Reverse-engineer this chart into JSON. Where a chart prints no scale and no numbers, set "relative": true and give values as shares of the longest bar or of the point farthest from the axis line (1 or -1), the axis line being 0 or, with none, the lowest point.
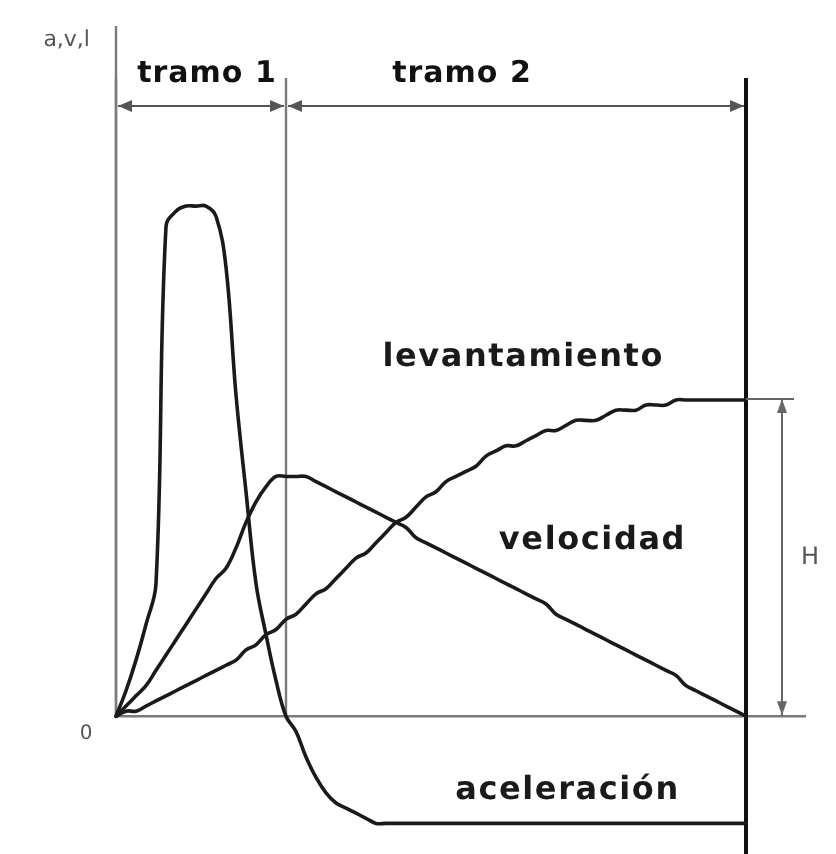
{
  "chart_data": {
    "type": "line",
    "relative": true,
    "tick_labels": false,
    "grid": false,
    "legend": false,
    "marker": "none",
    "line_style": "solid",
    "categories": [
      null,
      null,
      null,
      null,
      null,
      null,
      null,
      null,
      null,
      null,
      null,
      null,
      null,
      null,
      null,
      null,
      null,
      null,
      null,
      null,
      null,
      null,
      null,
      null,
      null,
      null,
      null,
      null,
      null,
      null,
      null,
      null,
      null,
      null,
      null,
      null,
      null,
      null,
      null,
      null,
      null,
      null,
      null,
      null,
      null,
      null,
      null,
      null,
      null,
      null,
      null,
      null,
      null,
      null,
      null,
      null,
      null,
      null,
      null,
      null,
      null,
      null,
      null,
      null
    ],
    "annotations": [
      "a,v,l",
      "tramo 1",
      "tramo 2",
      "0",
      "H"
    ],
    "series": [
      {
        "name": "aceleración",
        "color": "#1a1a1a",
        "values": [
          0,
          0.05,
          0.11,
          0.18,
          0.26,
          0.96,
          0.99,
          1,
          1,
          1,
          0.98,
          0.88,
          0.63,
          0.44,
          0.26,
          0.16,
          0.07,
          0,
          -0.03,
          -0.08,
          -0.12,
          -0.15,
          -0.17,
          -0.18,
          -0.19,
          -0.2,
          -0.21,
          -0.21,
          -0.21,
          -0.21,
          -0.21,
          -0.21,
          -0.21,
          -0.21,
          -0.21,
          -0.21,
          -0.21,
          -0.21,
          -0.21,
          -0.21,
          -0.21,
          -0.21,
          -0.21,
          -0.21,
          -0.21,
          -0.21,
          -0.21,
          -0.21,
          -0.21,
          -0.21,
          -0.21,
          -0.21,
          -0.21,
          -0.21,
          -0.21,
          -0.21,
          -0.21,
          -0.21,
          -0.21,
          -0.21,
          -0.21,
          -0.21,
          -0.21,
          -0.21
        ]
      },
      {
        "name": "velocidad",
        "color": "#1a1a1a",
        "values": [
          0,
          0.02,
          0.04,
          0.06,
          0.09,
          0.12,
          0.15,
          0.18,
          0.21,
          0.24,
          0.27,
          0.29,
          0.33,
          0.38,
          0.42,
          0.45,
          0.47,
          0.47,
          0.47,
          0.47,
          0.46,
          0.45,
          0.44,
          0.43,
          0.42,
          0.41,
          0.4,
          0.39,
          0.38,
          0.37,
          0.35,
          0.34,
          0.33,
          0.32,
          0.31,
          0.3,
          0.29,
          0.28,
          0.27,
          0.26,
          0.25,
          0.24,
          0.23,
          0.22,
          0.2,
          0.19,
          0.18,
          0.17,
          0.16,
          0.15,
          0.14,
          0.13,
          0.12,
          0.11,
          0.1,
          0.09,
          0.08,
          0.06,
          0.05,
          0.04,
          0.03,
          0.02,
          0.01,
          0
        ]
      },
      {
        "name": "levantamiento",
        "color": "#1a1a1a",
        "values": [
          0,
          0.01,
          0.01,
          0.02,
          0.03,
          0.04,
          0.05,
          0.06,
          0.07,
          0.08,
          0.09,
          0.1,
          0.11,
          0.13,
          0.14,
          0.16,
          0.17,
          0.19,
          0.2,
          0.22,
          0.24,
          0.25,
          0.27,
          0.29,
          0.31,
          0.32,
          0.34,
          0.36,
          0.38,
          0.39,
          0.41,
          0.43,
          0.44,
          0.46,
          0.47,
          0.48,
          0.49,
          0.51,
          0.52,
          0.53,
          0.53,
          0.54,
          0.55,
          0.56,
          0.56,
          0.57,
          0.58,
          0.58,
          0.58,
          0.59,
          0.6,
          0.6,
          0.6,
          0.61,
          0.61,
          0.61,
          0.62,
          0.62,
          0.62,
          0.62,
          0.62,
          0.62,
          0.62,
          0.62
        ]
      }
    ]
  }
}
